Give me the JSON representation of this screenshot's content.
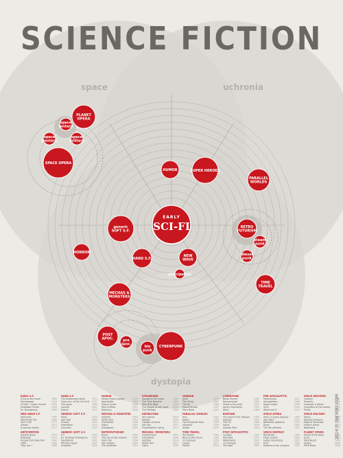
{
  "title": "SCIENCE FICTION",
  "regions": {
    "top_left": "space",
    "top_right": "uchronia",
    "bottom": "dystopia"
  },
  "center": {
    "line1": "EARLY",
    "line2": "SCI-FI"
  },
  "credits": "2016 © SW3091.COM",
  "colors": {
    "red": "#c8171e",
    "grey": "#6b6863",
    "background": "#ecebe6"
  },
  "nodes": [
    {
      "id": "planet-opera",
      "lines": [
        "PLANET",
        "OPERA"
      ]
    },
    {
      "id": "space-fantasy",
      "lines": [
        "space",
        "fantasy"
      ]
    },
    {
      "id": "space-western",
      "lines": [
        "space",
        "western"
      ]
    },
    {
      "id": "space-military",
      "lines": [
        "space",
        "military"
      ]
    },
    {
      "id": "space-opera",
      "lines": [
        "SPACE OPERA"
      ]
    },
    {
      "id": "humor",
      "lines": [
        "HUMOR"
      ]
    },
    {
      "id": "super-heroes",
      "lines": [
        "SUPER HEROES"
      ]
    },
    {
      "id": "parallel-worlds",
      "lines": [
        "PARALLEL",
        "WORLDS"
      ]
    },
    {
      "id": "generic-soft-sf",
      "lines": [
        "generic",
        "SOFT S.F."
      ]
    },
    {
      "id": "retro-futurism",
      "lines": [
        "RETRO",
        "FUTURISM"
      ]
    },
    {
      "id": "steam-punk",
      "lines": [
        "steam",
        "punk"
      ]
    },
    {
      "id": "diesel-punk",
      "lines": [
        "diesel",
        "punk"
      ]
    },
    {
      "id": "horror",
      "lines": [
        "HORROR"
      ]
    },
    {
      "id": "hard-sf",
      "lines": [
        "HARD S.F."
      ]
    },
    {
      "id": "new-wave",
      "lines": [
        "NEW",
        "WAVE"
      ]
    },
    {
      "id": "anticipation",
      "lines": [
        "anticipation"
      ]
    },
    {
      "id": "time-travel",
      "lines": [
        "TIME",
        "TRAVEL"
      ]
    },
    {
      "id": "mechas-monsters",
      "lines": [
        "MECHAS &",
        "MONSTERS"
      ]
    },
    {
      "id": "post-apoc",
      "lines": [
        "POST",
        "APOC."
      ]
    },
    {
      "id": "pre-apoc",
      "lines": [
        "pre",
        "apoc."
      ]
    },
    {
      "id": "bio-punk",
      "lines": [
        "bio",
        "punk"
      ]
    },
    {
      "id": "cyberpunk",
      "lines": [
        "CYBERPUNK"
      ]
    }
  ],
  "columns": [
    {
      "heading1": "EARLY S.F.",
      "items1": [
        [
          "A trip to the moon",
          "1865"
        ],
        [
          "Micromegas",
          "1752"
        ],
        [
          "20,000 l. under the sea",
          "1870"
        ],
        [
          "Forbidden Planet",
          "1956"
        ],
        [
          "Dr. Strangelove",
          "1964"
        ]
      ],
      "heading2": "NEW WAVE S.F.",
      "items2": [
        [
          "Alphaville",
          "1965"
        ],
        [
          "Fahrenheit 451",
          "1966"
        ],
        [
          "THX 1138",
          "1971"
        ],
        [
          "Zardoz",
          "1974"
        ],
        [
          "A scanner darkly",
          "1977"
        ]
      ],
      "heading3": "ANTICIPATION",
      "items3": [
        [
          "Soylent green",
          "1973"
        ],
        [
          "Rollerball",
          "1975"
        ],
        [
          "Escape from New York",
          "1981"
        ],
        [
          "1984",
          "1949"
        ],
        [
          "They live !",
          "1988"
        ]
      ]
    },
    {
      "heading1": "HARD S.F.",
      "items1": [
        [
          "The andromeda strain",
          "1971"
        ],
        [
          "Close enc. of the 3rd kind",
          "1977"
        ],
        [
          "The abyss",
          "1989"
        ],
        [
          "Contact",
          "1997"
        ],
        [
          "Solaris",
          "1972"
        ]
      ],
      "heading2": "GENERIC SOFT S.F.",
      "items2": [
        [
          "Moon",
          "2009"
        ],
        [
          "Star Trek",
          "1966"
        ],
        [
          "Gravity",
          "2013"
        ],
        [
          "Interstellar",
          "2014"
        ],
        [
          "Sunshine",
          "2007"
        ]
      ],
      "heading3": "GENERIC SOFT S.F.",
      "items3": [
        [
          "E.T.",
          "1982"
        ],
        [
          "A.I. Artificial Intelligence",
          "2001"
        ],
        [
          "Equilibrium",
          "2002"
        ],
        [
          "Minority report",
          "2002"
        ],
        [
          "Inception",
          "2010"
        ]
      ]
    },
    {
      "heading1": "HUMOR",
      "items1": [
        [
          "Monty Python galaxy",
          "1979"
        ],
        [
          "Spaceballs",
          "1987"
        ],
        [
          "Galaxy Quest",
          "1999"
        ],
        [
          "Men in Black",
          "1997"
        ],
        [
          "Idiocracy",
          "2006"
        ]
      ],
      "heading2": "MECHAS & MONSTERS",
      "items2": [
        [
          "Godzilla",
          "1954"
        ],
        [
          "Pacific Rim",
          "2013"
        ],
        [
          "Cloverfield",
          "2008"
        ],
        [
          "Gojira",
          "1954"
        ],
        [
          "Evangelion",
          "1995"
        ]
      ],
      "heading3": "RETROFUTURISM",
      "items3": [
        [
          "Brazil",
          "1985"
        ],
        [
          "The city of lost children",
          "1995"
        ],
        [
          "Dark City",
          "1998"
        ],
        [
          "Sky Captain",
          "2004"
        ],
        [
          "The rocketeer",
          "1991"
        ]
      ]
    },
    {
      "heading1": "STEAMPUNK",
      "items1": [
        [
          "Voyage to the moon",
          "1902"
        ],
        [
          "The Time Machine",
          "1895"
        ],
        [
          "Wild Wild West",
          "1999"
        ],
        [
          "The league of extr. gent.",
          "2003"
        ],
        [
          "The Prestige",
          "2006"
        ]
      ],
      "heading2": "DIESELPUNK",
      "items2": [
        [
          "Sky captain",
          "2004"
        ],
        [
          "Hellboy",
          "2004"
        ],
        [
          "Captain America",
          "2011"
        ],
        [
          "Iron Sky",
          "2012"
        ],
        [
          "Frankenstein's Army",
          "2013"
        ]
      ],
      "heading3": "MECHAS / MONSTERS",
      "items3": [
        [
          "Transformers",
          "2007"
        ],
        [
          "Cloverfield",
          "2008"
        ],
        [
          "Godzilla",
          "2014"
        ],
        [
          "Pacific Rim",
          "2013"
        ],
        [
          "Gojira",
          "1954"
        ]
      ]
    },
    {
      "heading1": "HORROR",
      "items1": [
        [
          "Alien",
          "1979"
        ],
        [
          "The Thing",
          "1982"
        ],
        [
          "The fly",
          "1986"
        ],
        [
          "Event Horizon",
          "1997"
        ],
        [
          "Pitch Black",
          "2000"
        ]
      ],
      "heading2": "PARALLEL WORLDS",
      "items2": [
        [
          "Tron",
          "1982"
        ],
        [
          "Matrix",
          "1999"
        ],
        [
          "The thirteenth floor",
          "1999"
        ],
        [
          "eXistenZ",
          "1999"
        ],
        [
          "Avatar",
          "2009"
        ]
      ],
      "heading3": "TIME TRAVEL",
      "items3": [
        [
          "Terminator",
          "1984"
        ],
        [
          "Back to the future",
          "1985"
        ],
        [
          "12 monkeys",
          "1995"
        ],
        [
          "Looper",
          "2012"
        ],
        [
          "Primer",
          "2004"
        ]
      ]
    },
    {
      "heading1": "CYBERPUNK",
      "items1": [
        [
          "Blade Runner",
          "1982"
        ],
        [
          "Neuromancer",
          "1984"
        ],
        [
          "Ghost in the shell",
          "1995"
        ],
        [
          "Johnny Mnemonic",
          "1995"
        ],
        [
          "Akira",
          "1988"
        ]
      ],
      "heading2": "BIOPUNK",
      "items2": [
        [
          "The island of Dr. Moreau",
          "1996"
        ],
        [
          "Gattaca",
          "1997"
        ],
        [
          "The Fly",
          "1986"
        ],
        [
          "Splice",
          "2009"
        ],
        [
          "Jurassic Park",
          "1993"
        ]
      ],
      "heading3": "POST APOCALYPTIC",
      "items3": [
        [
          "La Jetée",
          "1962"
        ],
        [
          "Mad Max",
          "1979"
        ],
        [
          "Waterworld",
          "1995"
        ],
        [
          "12 monkeys",
          "1995"
        ],
        [
          "The road",
          "2009"
        ]
      ]
    },
    {
      "heading1": "PRE-APOCALYPTIC",
      "items1": [
        [
          "Melancholia",
          "2011"
        ],
        [
          "Armageddon",
          "1998"
        ],
        [
          "Deep Impact",
          "1998"
        ],
        [
          "2012",
          "2009"
        ],
        [
          "World war Z",
          "2013"
        ]
      ],
      "heading2": "SPACE OPERA",
      "items2": [
        [
          "2001: a space odyssey",
          "1968"
        ],
        [
          "Star Wars",
          "1977"
        ],
        [
          "Battlestar galactica",
          "1978"
        ],
        [
          "Dune",
          "1984"
        ],
        [
          "The 5th element",
          "1997"
        ]
      ],
      "heading3": "SPACE FANTASY",
      "items3": [
        [
          "Barbarella",
          "1968"
        ],
        [
          "Flash Gordon",
          "1980"
        ],
        [
          "Jupiter Ascending",
          "2015"
        ],
        [
          "Krull",
          "1983"
        ],
        [
          "Masters of the universe",
          "1987"
        ]
      ]
    },
    {
      "heading1": "SPACE WESTERN",
      "items1": [
        [
          "Outland",
          "1981"
        ],
        [
          "Serenity",
          "2005"
        ],
        [
          "Cowboys & Aliens",
          "2011"
        ],
        [
          "Guardians of the Galaxy",
          "2014"
        ],
        [
          "Firefly",
          "2002"
        ]
      ],
      "heading2": "SPACE MILITARY",
      "items2": [
        [
          "Aliens",
          "1986"
        ],
        [
          "Starship Troopers",
          "1997"
        ],
        [
          "Edge of Tomorrow",
          "2014"
        ],
        [
          "Ender's Game",
          "2013"
        ],
        [
          "Battleship",
          "2012"
        ]
      ],
      "heading3": "PLANET OPERA",
      "items3": [
        [
          "Planet of the apes",
          "1968"
        ],
        [
          "Dune",
          "1984"
        ],
        [
          "Total Recall",
          "1990"
        ],
        [
          "Avatar",
          "2009"
        ],
        [
          "Pitch Black",
          "2000"
        ]
      ]
    }
  ]
}
